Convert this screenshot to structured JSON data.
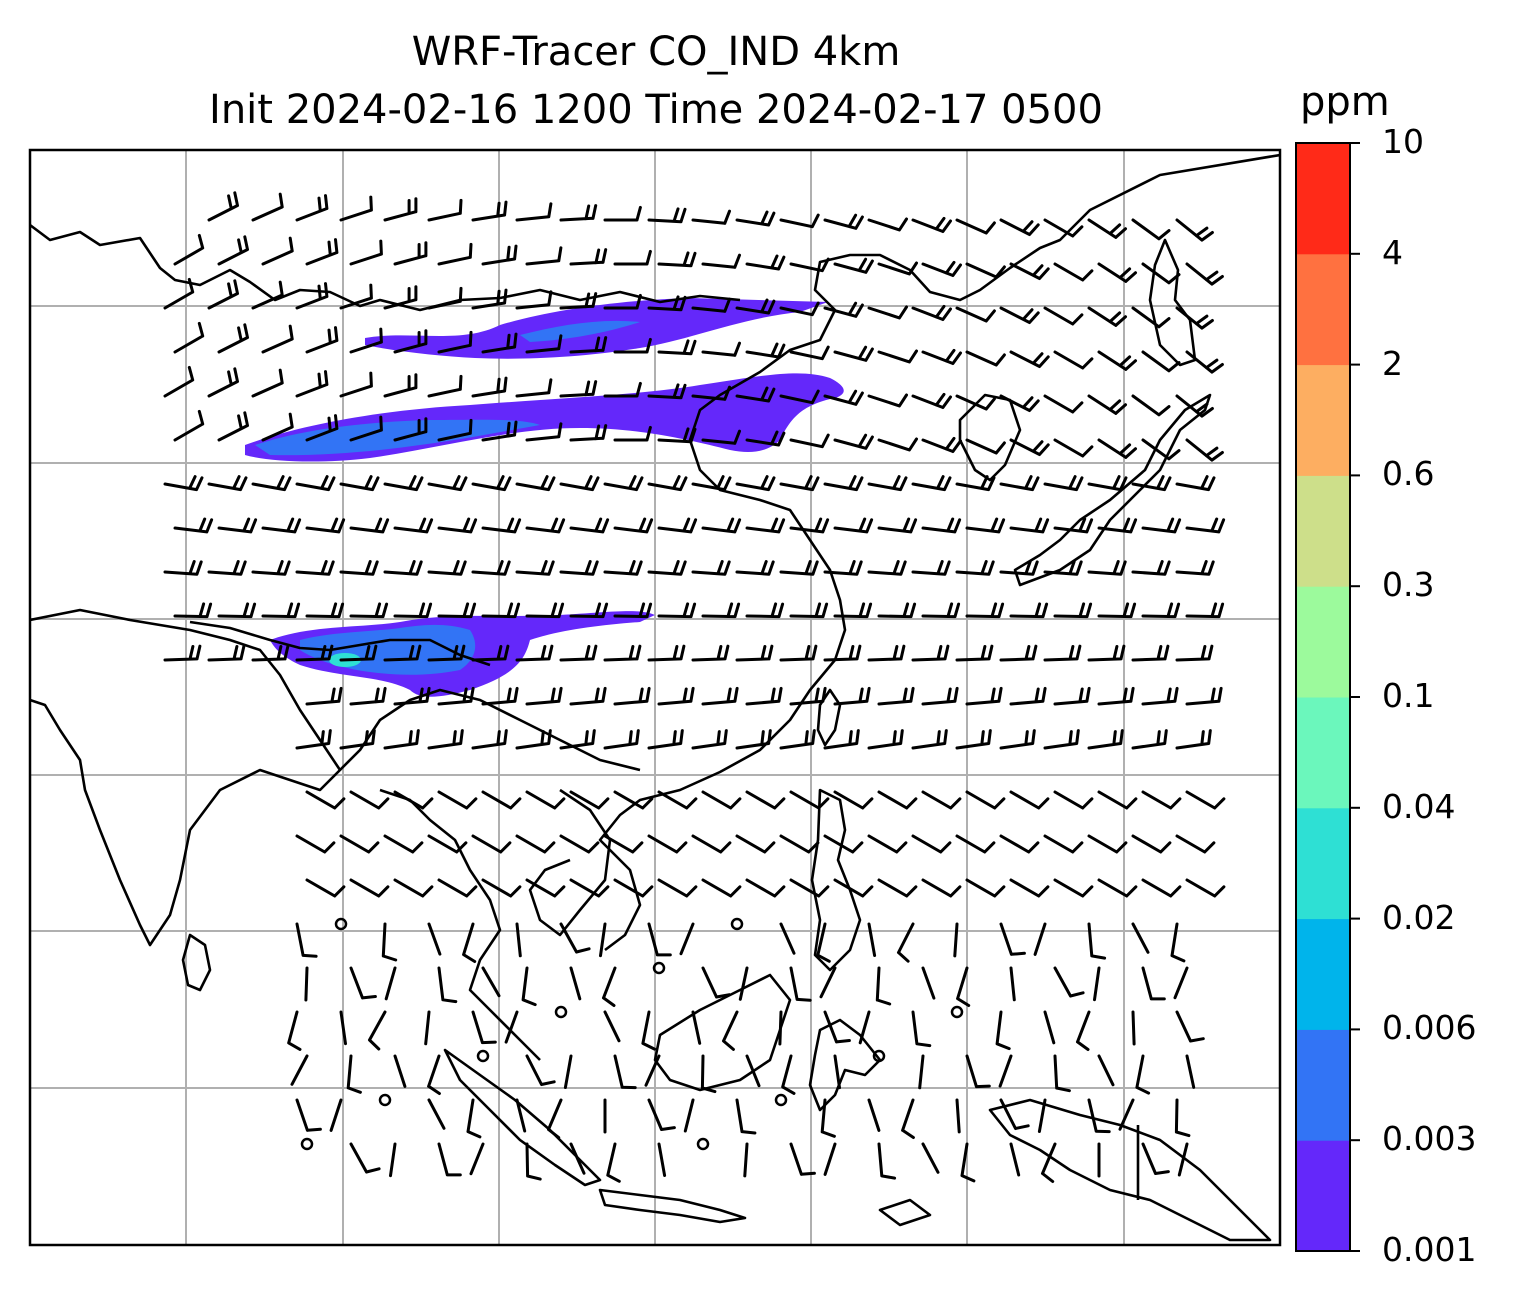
{
  "title": {
    "line1": "WRF-Tracer CO_IND 4km",
    "line2": "Init 2024-02-16 1200 Time 2024-02-17 0500"
  },
  "colorbar": {
    "unit": "ppm",
    "levels": [
      "0.001",
      "0.003",
      "0.006",
      "0.02",
      "0.04",
      "0.1",
      "0.3",
      "0.6",
      "2",
      "4",
      "10"
    ],
    "colors": [
      "#6428fa",
      "#3274f5",
      "#00b4eb",
      "#2ee0d4",
      "#6bf7bc",
      "#9cfa9c",
      "#cddf8a",
      "#fdae61",
      "#ff7140",
      "#ff2a18"
    ]
  },
  "map": {
    "land_line_color": "#000000",
    "grid_color": "#b0b0b0",
    "wind_barb_color": "#000000"
  }
}
